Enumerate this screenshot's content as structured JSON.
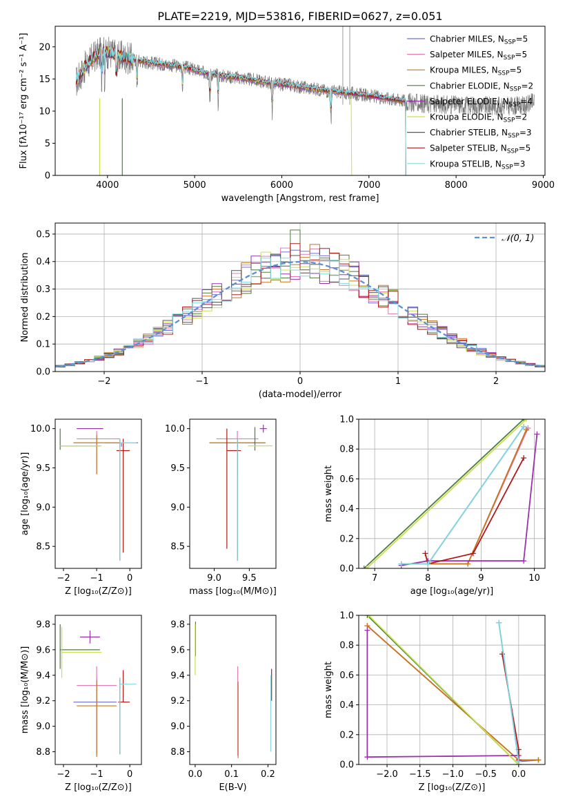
{
  "figure": {
    "title": "PLATE=2219, MJD=53816, FIBERID=0627, z=0.051"
  },
  "legend_series": [
    {
      "label": "Chabrier MILES, N",
      "sub": "SSP",
      "tail": "=5",
      "color": "#6f6fd6"
    },
    {
      "label": "Salpeter MILES, N",
      "sub": "SSP",
      "tail": "=5",
      "color": "#e27ab5"
    },
    {
      "label": "Kroupa MILES, N",
      "sub": "SSP",
      "tail": "=5",
      "color": "#c8741a"
    },
    {
      "label": "Chabrier ELODIE, N",
      "sub": "SSP",
      "tail": "=2",
      "color": "#4a7d3a"
    },
    {
      "label": "Salpeter ELODIE, N",
      "sub": "SSP",
      "tail": "=4",
      "color": "#9b2fae"
    },
    {
      "label": "Kroupa ELODIE, N",
      "sub": "SSP",
      "tail": "=2",
      "color": "#c9e04a"
    },
    {
      "label": "Chabrier STELIB, N",
      "sub": "SSP",
      "tail": "=3",
      "color": "#555555"
    },
    {
      "label": "Salpeter STELIB, N",
      "sub": "SSP",
      "tail": "=5",
      "color": "#b01818"
    },
    {
      "label": "Kroupa STELIB, N",
      "sub": "SSP",
      "tail": "=3",
      "color": "#7fd7e0"
    }
  ],
  "chart_data": [
    {
      "id": "spectrum",
      "type": "line",
      "xlabel": "wavelength [Angstrom, rest frame]",
      "ylabel": "Flux [fλ10⁻¹⁷ erg cm⁻² s⁻¹ A⁻¹]",
      "xlim": [
        3400,
        9020
      ],
      "ylim": [
        0,
        23.2
      ],
      "xticks": [
        4000,
        5000,
        6000,
        7000,
        8000,
        9000
      ],
      "yticks": [
        0,
        5,
        10,
        15,
        20
      ],
      "grid": false,
      "legend_placement": "top-right",
      "continuum": {
        "x": [
          3640,
          3750,
          3850,
          3950,
          4050,
          4150,
          4300,
          4500,
          4700,
          4900,
          5100,
          5300,
          5500,
          5700,
          5900,
          6100,
          6300,
          6500,
          6700,
          6900,
          7100,
          7300,
          7420
        ],
        "y": [
          14.5,
          17.0,
          18.5,
          19.2,
          19.0,
          18.5,
          18.0,
          17.5,
          17.2,
          16.8,
          16.0,
          15.5,
          15.2,
          14.8,
          14.3,
          14.0,
          13.6,
          13.2,
          12.9,
          12.6,
          12.2,
          11.8,
          11.6
        ]
      },
      "observed_tail": {
        "x": [
          7420,
          7600,
          7800,
          8000,
          8200,
          8400,
          8600,
          8800,
          8900
        ],
        "y": [
          11.4,
          11.2,
          11.0,
          11.0,
          10.9,
          10.8,
          10.8,
          10.9,
          11.5
        ]
      }
    },
    {
      "id": "residuals",
      "type": "step",
      "xlabel": "(data-model)/error",
      "ylabel": "Normed distribution",
      "xlim": [
        -2.5,
        2.5
      ],
      "ylim": [
        0,
        0.54
      ],
      "xticks": [
        -2,
        -1,
        0,
        1,
        2
      ],
      "yticks": [
        0.0,
        0.1,
        0.2,
        0.3,
        0.4,
        0.5
      ],
      "grid": true,
      "legend": {
        "label": "𝒩(0, 1)",
        "color": "#5b8fd6",
        "placement": "top-right"
      },
      "bin_width": 0.1,
      "reference_curve": "standard normal, peak 0.40 at 0"
    },
    {
      "id": "age_vs_Z",
      "type": "errorbar",
      "xlabel": "Z [log₁₀(Z/Z⊙)]",
      "ylabel": "age  [log₁₀(age/yr)]",
      "xlim": [
        -2.25,
        0.35
      ],
      "ylim": [
        8.22,
        10.12
      ],
      "xticks": [
        -2,
        -1,
        0
      ],
      "yticks": [
        8.5,
        9.0,
        9.5,
        10.0
      ],
      "points": [
        {
          "series": 0,
          "x": -0.25,
          "y": 9.82,
          "xe": [
            0.5,
            0.5
          ],
          "ye": [
            0.05,
            0.0
          ]
        },
        {
          "series": 1,
          "x": -1.0,
          "y": 9.87,
          "xe": [
            0.6,
            0.7
          ],
          "ye": [
            0.45,
            0.1
          ]
        },
        {
          "series": 2,
          "x": -1.0,
          "y": 9.82,
          "xe": [
            0.7,
            0.7
          ],
          "ye": [
            0.4,
            0.1
          ]
        },
        {
          "series": 3,
          "x": -2.1,
          "y": 9.78,
          "xe": [
            0.0,
            1.2
          ],
          "ye": [
            0.05,
            0.22
          ]
        },
        {
          "series": 4,
          "x": -1.2,
          "y": 10.0,
          "xe": [
            0.4,
            0.4
          ],
          "ye": [
            0.0,
            0.0
          ]
        },
        {
          "series": 5,
          "x": -1.4,
          "y": 9.78,
          "xe": [
            0.7,
            0.55
          ],
          "ye": [
            0.0,
            0.0
          ]
        },
        {
          "series": 6,
          "x": -0.3,
          "y": 9.82,
          "xe": [
            0.0,
            0.0
          ],
          "ye": [
            1.5,
            0.05
          ]
        },
        {
          "series": 7,
          "x": -0.2,
          "y": 9.72,
          "xe": [
            0.2,
            0.2
          ],
          "ye": [
            1.3,
            0.15
          ]
        },
        {
          "series": 8,
          "x": -0.3,
          "y": 9.82,
          "xe": [
            0.0,
            0.5
          ],
          "ye": [
            1.5,
            0.05
          ]
        }
      ]
    },
    {
      "id": "age_vs_mass",
      "type": "errorbar",
      "xlabel": "mass [log₁₀(M/M⊙)]",
      "ylabel": "",
      "xlim": [
        8.65,
        9.88
      ],
      "ylim": [
        8.22,
        10.12
      ],
      "xticks": [
        9.0,
        9.5
      ],
      "yticks": [
        8.5,
        9.0,
        9.5,
        10.0
      ],
      "points": [
        {
          "series": 0,
          "x": 9.33,
          "y": 9.82,
          "xe": [
            0.4,
            0.4
          ],
          "ye": [
            1.5,
            0.05
          ]
        },
        {
          "series": 1,
          "x": 9.33,
          "y": 9.87,
          "xe": [
            0.3,
            0.3
          ],
          "ye": [
            0.45,
            0.1
          ]
        },
        {
          "series": 2,
          "x": 9.33,
          "y": 9.82,
          "xe": [
            0.4,
            0.4
          ],
          "ye": [
            1.5,
            0.05
          ]
        },
        {
          "series": 3,
          "x": 9.58,
          "y": 9.82,
          "xe": [
            0.02,
            0.0
          ],
          "ye": [
            0.1,
            0.2
          ]
        },
        {
          "series": 4,
          "x": 9.7,
          "y": 10.0,
          "xe": [
            0.05,
            0.05
          ],
          "ye": [
            0.05,
            0.05
          ]
        },
        {
          "series": 5,
          "x": 9.58,
          "y": 9.78,
          "xe": [
            0.1,
            0.25
          ],
          "ye": [
            0.0,
            0.0
          ]
        },
        {
          "series": 6,
          "x": 9.33,
          "y": 9.82,
          "xe": [
            0.0,
            0.0
          ],
          "ye": [
            1.5,
            0.05
          ]
        },
        {
          "series": 7,
          "x": 9.18,
          "y": 9.72,
          "xe": [
            0.0,
            0.2
          ],
          "ye": [
            1.25,
            0.28
          ]
        },
        {
          "series": 8,
          "x": 9.33,
          "y": 9.82,
          "xe": [
            0.0,
            0.0
          ],
          "ye": [
            1.5,
            0.05
          ]
        }
      ]
    },
    {
      "id": "weight_vs_age",
      "type": "line",
      "xlabel": "age  [log₁₀(age/yr)]",
      "ylabel": "mass weight",
      "xlim": [
        6.7,
        10.2
      ],
      "ylim": [
        0,
        1.0
      ],
      "xticks": [
        7,
        8,
        9,
        10
      ],
      "yticks": [
        0.0,
        0.2,
        0.4,
        0.6,
        0.8,
        1.0
      ],
      "grid": true,
      "series": [
        {
          "series": 0,
          "x": [
            7.5,
            8.0,
            9.8
          ],
          "y": [
            0.03,
            0.03,
            0.95
          ]
        },
        {
          "series": 1,
          "x": [
            8.0,
            8.75,
            9.88
          ],
          "y": [
            0.03,
            0.03,
            0.94
          ]
        },
        {
          "series": 2,
          "x": [
            8.0,
            8.75,
            9.85
          ],
          "y": [
            0.03,
            0.03,
            0.93
          ]
        },
        {
          "series": 3,
          "x": [
            6.8,
            9.8
          ],
          "y": [
            0.0,
            1.0
          ]
        },
        {
          "series": 4,
          "x": [
            7.5,
            8.0,
            9.8,
            10.05
          ],
          "y": [
            0.02,
            0.05,
            0.05,
            0.9
          ]
        },
        {
          "series": 5,
          "x": [
            6.85,
            9.85
          ],
          "y": [
            0.0,
            1.0
          ]
        },
        {
          "series": 7,
          "x": [
            7.95,
            8.0,
            8.85,
            9.8
          ],
          "y": [
            0.1,
            0.03,
            0.1,
            0.74
          ]
        },
        {
          "series": 8,
          "x": [
            7.5,
            8.0,
            9.8
          ],
          "y": [
            0.03,
            0.03,
            0.95
          ]
        }
      ]
    },
    {
      "id": "mass_vs_Z",
      "type": "errorbar",
      "xlabel": "Z [log₁₀(Z/Z⊙)]",
      "ylabel": "mass [log₁₀(M/M⊙)]",
      "xlim": [
        -2.25,
        0.35
      ],
      "ylim": [
        8.7,
        9.87
      ],
      "xticks": [
        -2,
        -1,
        0
      ],
      "yticks": [
        8.8,
        9.0,
        9.2,
        9.4,
        9.6,
        9.8
      ],
      "points": [
        {
          "series": 0,
          "x": -1.0,
          "y": 9.19,
          "xe": [
            0.7,
            0.6
          ],
          "ye": [
            0.4,
            0.2
          ]
        },
        {
          "series": 1,
          "x": -1.0,
          "y": 9.32,
          "xe": [
            0.6,
            0.6
          ],
          "ye": [
            0.55,
            0.15
          ]
        },
        {
          "series": 2,
          "x": -1.0,
          "y": 9.16,
          "xe": [
            0.6,
            0.6
          ],
          "ye": [
            0.4,
            0.2
          ]
        },
        {
          "series": 3,
          "x": -2.1,
          "y": 9.6,
          "xe": [
            0.0,
            1.2
          ],
          "ye": [
            0.15,
            0.2
          ]
        },
        {
          "series": 4,
          "x": -1.2,
          "y": 9.7,
          "xe": [
            0.3,
            0.3
          ],
          "ye": [
            0.05,
            0.05
          ]
        },
        {
          "series": 5,
          "x": -2.05,
          "y": 9.58,
          "xe": [
            0.0,
            1.2
          ],
          "ye": [
            0.2,
            0.2
          ]
        },
        {
          "series": 6,
          "x": -0.3,
          "y": 9.33,
          "xe": [
            0.0,
            0.0
          ],
          "ye": [
            0.55,
            0.05
          ]
        },
        {
          "series": 7,
          "x": -0.2,
          "y": 9.19,
          "xe": [
            0.15,
            0.2
          ],
          "ye": [
            0.0,
            0.25
          ]
        },
        {
          "series": 8,
          "x": -0.3,
          "y": 9.33,
          "xe": [
            0.0,
            0.5
          ],
          "ye": [
            0.55,
            0.05
          ]
        }
      ]
    },
    {
      "id": "mass_vs_ebv",
      "type": "errorbar",
      "xlabel": "E(B-V)",
      "ylabel": "",
      "xlim": [
        -0.015,
        0.222
      ],
      "ylim": [
        8.7,
        9.87
      ],
      "xticks": [
        0.0,
        0.1,
        0.2
      ],
      "yticks": [
        8.8,
        9.0,
        9.2,
        9.4,
        9.6,
        9.8
      ],
      "points": [
        {
          "series": 1,
          "x": 0.117,
          "y": 9.32,
          "xe": [
            0,
            0
          ],
          "ye": [
            0.55,
            0.15
          ]
        },
        {
          "series": 2,
          "x": 0.118,
          "y": 9.2,
          "xe": [
            0,
            0
          ],
          "ye": [
            0.45,
            0.15
          ]
        },
        {
          "series": 3,
          "x": 0.001,
          "y": 9.75,
          "xe": [
            0,
            0
          ],
          "ye": [
            0.2,
            0.07
          ]
        },
        {
          "series": 5,
          "x": 0.0,
          "y": 9.6,
          "xe": [
            0,
            0
          ],
          "ye": [
            0.2,
            0.2
          ]
        },
        {
          "series": 7,
          "x": 0.21,
          "y": 9.3,
          "xe": [
            0,
            0
          ],
          "ye": [
            0.1,
            0.15
          ]
        },
        {
          "series": 8,
          "x": 0.208,
          "y": 9.2,
          "xe": [
            0,
            0
          ],
          "ye": [
            0.4,
            0.2
          ]
        }
      ]
    },
    {
      "id": "weight_vs_Z",
      "type": "line",
      "xlabel": "Z [log₁₀(Z/Z⊙)]",
      "ylabel": "mass weight",
      "xlim": [
        -2.43,
        0.4
      ],
      "ylim": [
        0,
        1.0
      ],
      "xticks": [
        -2.0,
        -1.5,
        -1.0,
        -0.5,
        0.0
      ],
      "yticks": [
        0.0,
        0.2,
        0.4,
        0.6,
        0.8,
        1.0
      ],
      "grid": true,
      "series": [
        {
          "series": 0,
          "x": [
            -0.3,
            0.0,
            0.3
          ],
          "y": [
            0.95,
            0.02,
            0.03
          ]
        },
        {
          "series": 1,
          "x": [
            -2.3,
            0.0,
            0.3
          ],
          "y": [
            0.93,
            0.03,
            0.03
          ]
        },
        {
          "series": 2,
          "x": [
            -2.3,
            0.0,
            0.3
          ],
          "y": [
            0.93,
            0.03,
            0.03
          ]
        },
        {
          "series": 3,
          "x": [
            -2.3,
            0.0
          ],
          "y": [
            1.0,
            0.0
          ]
        },
        {
          "series": 4,
          "x": [
            -2.3,
            -2.3,
            0.0,
            0.0
          ],
          "y": [
            0.9,
            0.05,
            0.06,
            0.0
          ]
        },
        {
          "series": 5,
          "x": [
            -2.28,
            0.0
          ],
          "y": [
            1.0,
            0.0
          ]
        },
        {
          "series": 7,
          "x": [
            -0.25,
            0.0,
            0.0
          ],
          "y": [
            0.74,
            0.1,
            0.03
          ]
        },
        {
          "series": 8,
          "x": [
            -0.3,
            0.0
          ],
          "y": [
            0.95,
            0.02
          ]
        }
      ]
    }
  ]
}
